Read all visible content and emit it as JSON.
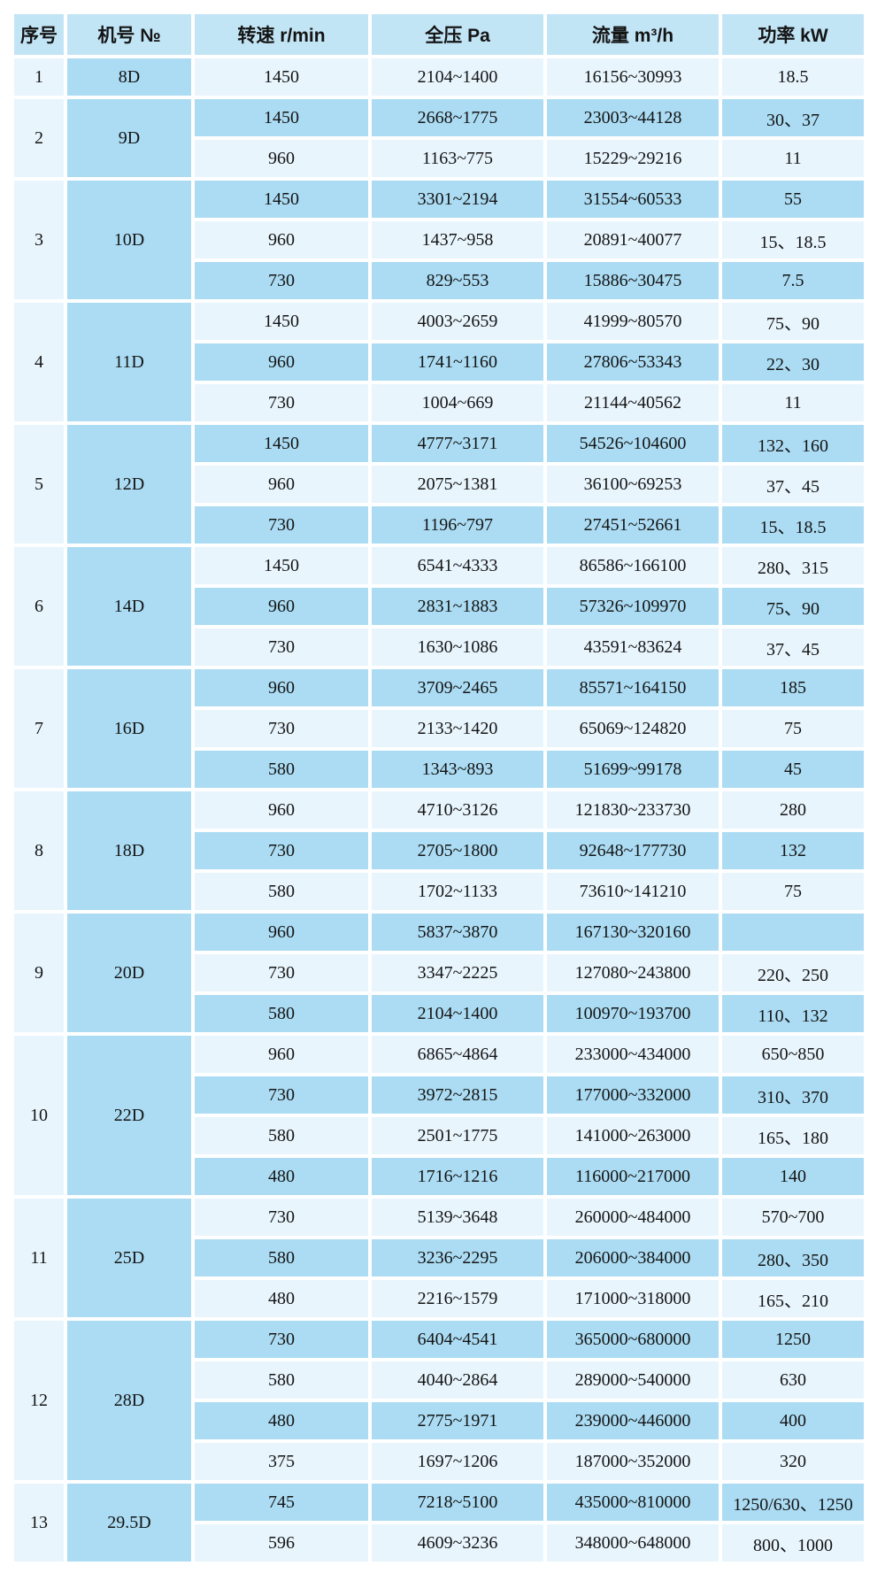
{
  "table": {
    "headers": [
      "序号",
      "机号 №",
      "转速 r/min",
      "全压 Pa",
      "流量 m³/h",
      "功率 kW"
    ],
    "colors": {
      "header_bg": "#c2e5f6",
      "row_light_bg": "#e8f5fd",
      "row_mid_bg": "#abdcf3",
      "serial_col_bg": "#e8f5fd",
      "model_col_bg": "#abdcf3",
      "grid_gap": "#ffffff",
      "text": "#141414"
    },
    "groups": [
      {
        "no": "1",
        "model": "8D",
        "rows": [
          {
            "speed": "1450",
            "pressure": "2104~1400",
            "flow": "16156~30993",
            "power": "18.5"
          }
        ]
      },
      {
        "no": "2",
        "model": "9D",
        "rows": [
          {
            "speed": "1450",
            "pressure": "2668~1775",
            "flow": "23003~44128",
            "power": "30、37"
          },
          {
            "speed": "960",
            "pressure": "1163~775",
            "flow": "15229~29216",
            "power": "11"
          }
        ]
      },
      {
        "no": "3",
        "model": "10D",
        "rows": [
          {
            "speed": "1450",
            "pressure": "3301~2194",
            "flow": "31554~60533",
            "power": "55"
          },
          {
            "speed": "960",
            "pressure": "1437~958",
            "flow": "20891~40077",
            "power": "15、18.5"
          },
          {
            "speed": "730",
            "pressure": "829~553",
            "flow": "15886~30475",
            "power": "7.5"
          }
        ]
      },
      {
        "no": "4",
        "model": "11D",
        "rows": [
          {
            "speed": "1450",
            "pressure": "4003~2659",
            "flow": "41999~80570",
            "power": "75、90"
          },
          {
            "speed": "960",
            "pressure": "1741~1160",
            "flow": "27806~53343",
            "power": "22、30"
          },
          {
            "speed": "730",
            "pressure": "1004~669",
            "flow": "21144~40562",
            "power": "11"
          }
        ]
      },
      {
        "no": "5",
        "model": "12D",
        "rows": [
          {
            "speed": "1450",
            "pressure": "4777~3171",
            "flow": "54526~104600",
            "power": "132、160"
          },
          {
            "speed": "960",
            "pressure": "2075~1381",
            "flow": "36100~69253",
            "power": "37、45"
          },
          {
            "speed": "730",
            "pressure": "1196~797",
            "flow": "27451~52661",
            "power": "15、18.5"
          }
        ]
      },
      {
        "no": "6",
        "model": "14D",
        "rows": [
          {
            "speed": "1450",
            "pressure": "6541~4333",
            "flow": "86586~166100",
            "power": "280、315"
          },
          {
            "speed": "960",
            "pressure": "2831~1883",
            "flow": "57326~109970",
            "power": "75、90"
          },
          {
            "speed": "730",
            "pressure": "1630~1086",
            "flow": "43591~83624",
            "power": "37、45"
          }
        ]
      },
      {
        "no": "7",
        "model": "16D",
        "rows": [
          {
            "speed": "960",
            "pressure": "3709~2465",
            "flow": "85571~164150",
            "power": "185"
          },
          {
            "speed": "730",
            "pressure": "2133~1420",
            "flow": "65069~124820",
            "power": "75"
          },
          {
            "speed": "580",
            "pressure": "1343~893",
            "flow": "51699~99178",
            "power": "45"
          }
        ]
      },
      {
        "no": "8",
        "model": "18D",
        "rows": [
          {
            "speed": "960",
            "pressure": "4710~3126",
            "flow": "121830~233730",
            "power": "280"
          },
          {
            "speed": "730",
            "pressure": "2705~1800",
            "flow": "92648~177730",
            "power": "132"
          },
          {
            "speed": "580",
            "pressure": "1702~1133",
            "flow": "73610~141210",
            "power": "75"
          }
        ]
      },
      {
        "no": "9",
        "model": "20D",
        "rows": [
          {
            "speed": "960",
            "pressure": "5837~3870",
            "flow": "167130~320160",
            "power": ""
          },
          {
            "speed": "730",
            "pressure": "3347~2225",
            "flow": "127080~243800",
            "power": "220、250"
          },
          {
            "speed": "580",
            "pressure": "2104~1400",
            "flow": "100970~193700",
            "power": "110、132"
          }
        ]
      },
      {
        "no": "10",
        "model": "22D",
        "rows": [
          {
            "speed": "960",
            "pressure": "6865~4864",
            "flow": "233000~434000",
            "power": "650~850"
          },
          {
            "speed": "730",
            "pressure": "3972~2815",
            "flow": "177000~332000",
            "power": "310、370"
          },
          {
            "speed": "580",
            "pressure": "2501~1775",
            "flow": "141000~263000",
            "power": "165、180"
          },
          {
            "speed": "480",
            "pressure": "1716~1216",
            "flow": "116000~217000",
            "power": "140"
          }
        ]
      },
      {
        "no": "11",
        "model": "25D",
        "rows": [
          {
            "speed": "730",
            "pressure": "5139~3648",
            "flow": "260000~484000",
            "power": "570~700"
          },
          {
            "speed": "580",
            "pressure": "3236~2295",
            "flow": "206000~384000",
            "power": "280、350"
          },
          {
            "speed": "480",
            "pressure": "2216~1579",
            "flow": "171000~318000",
            "power": "165、210"
          }
        ]
      },
      {
        "no": "12",
        "model": "28D",
        "rows": [
          {
            "speed": "730",
            "pressure": "6404~4541",
            "flow": "365000~680000",
            "power": "1250"
          },
          {
            "speed": "580",
            "pressure": "4040~2864",
            "flow": "289000~540000",
            "power": "630"
          },
          {
            "speed": "480",
            "pressure": "2775~1971",
            "flow": "239000~446000",
            "power": "400"
          },
          {
            "speed": "375",
            "pressure": "1697~1206",
            "flow": "187000~352000",
            "power": "320"
          }
        ]
      },
      {
        "no": "13",
        "model": "29.5D",
        "rows": [
          {
            "speed": "745",
            "pressure": "7218~5100",
            "flow": "435000~810000",
            "power": "1250/630、1250"
          },
          {
            "speed": "596",
            "pressure": "4609~3236",
            "flow": "348000~648000",
            "power": "800、1000"
          }
        ]
      }
    ]
  }
}
